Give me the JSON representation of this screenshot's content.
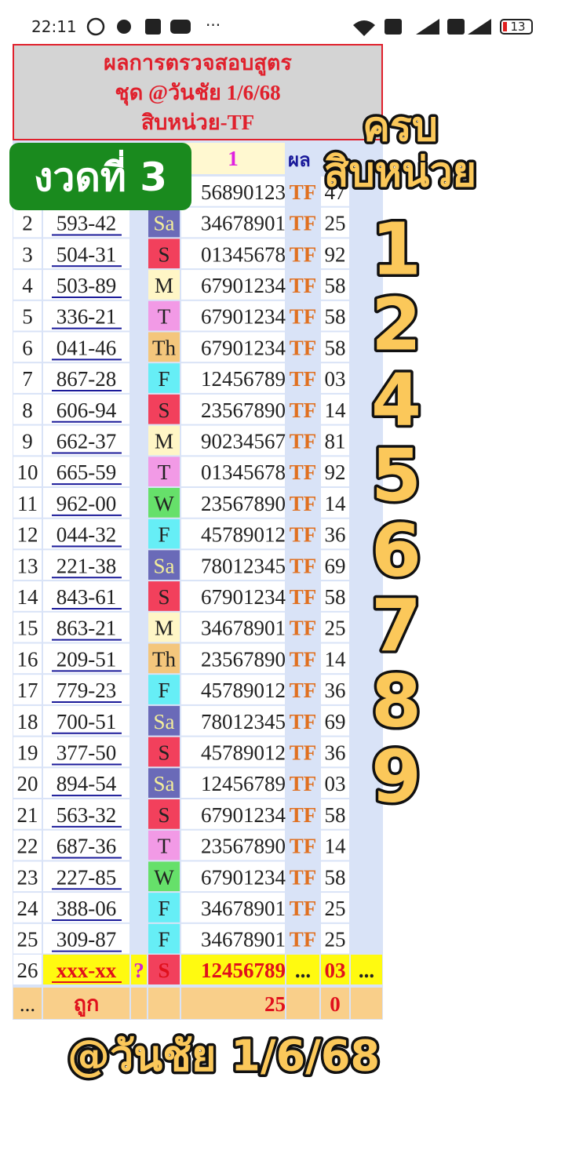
{
  "status_bar": {
    "time": "22:11",
    "more": "···",
    "battery": "13"
  },
  "header": {
    "lines": [
      "ผลการตรวจสอบสูตร",
      "ชุด @วันชัย 1/6/68",
      "สิบหน่วย-TF"
    ]
  },
  "column_headers": {
    "digits": "1",
    "result": "ผล"
  },
  "day_colors": {
    "Sa": "#6a6ab8",
    "S": "#f2405c",
    "M": "#fff6c6",
    "T": "#f29ae6",
    "Th": "#f4c67c",
    "F": "#66eef6",
    "W": "#66e06a"
  },
  "rows": [
    {
      "digits": "56890123",
      "tf": "TF",
      "result": "47"
    },
    {
      "no": "2",
      "code": "593-42",
      "day": "Sa",
      "digits": "34678901",
      "tf": "TF",
      "result": "25"
    },
    {
      "no": "3",
      "code": "504-31",
      "day": "S",
      "digits": "01345678",
      "tf": "TF",
      "result": "92"
    },
    {
      "no": "4",
      "code": "503-89",
      "day": "M",
      "digits": "67901234",
      "tf": "TF",
      "result": "58"
    },
    {
      "no": "5",
      "code": "336-21",
      "day": "T",
      "digits": "67901234",
      "tf": "TF",
      "result": "58"
    },
    {
      "no": "6",
      "code": "041-46",
      "day": "Th",
      "digits": "67901234",
      "tf": "TF",
      "result": "58"
    },
    {
      "no": "7",
      "code": "867-28",
      "day": "F",
      "digits": "12456789",
      "tf": "TF",
      "result": "03"
    },
    {
      "no": "8",
      "code": "606-94",
      "day": "S",
      "digits": "23567890",
      "tf": "TF",
      "result": "14"
    },
    {
      "no": "9",
      "code": "662-37",
      "day": "M",
      "digits": "90234567",
      "tf": "TF",
      "result": "81"
    },
    {
      "no": "10",
      "code": "665-59",
      "day": "T",
      "digits": "01345678",
      "tf": "TF",
      "result": "92"
    },
    {
      "no": "11",
      "code": "962-00",
      "day": "W",
      "digits": "23567890",
      "tf": "TF",
      "result": "14"
    },
    {
      "no": "12",
      "code": "044-32",
      "day": "F",
      "digits": "45789012",
      "tf": "TF",
      "result": "36"
    },
    {
      "no": "13",
      "code": "221-38",
      "day": "Sa",
      "digits": "78012345",
      "tf": "TF",
      "result": "69"
    },
    {
      "no": "14",
      "code": "843-61",
      "day": "S",
      "digits": "67901234",
      "tf": "TF",
      "result": "58"
    },
    {
      "no": "15",
      "code": "863-21",
      "day": "M",
      "digits": "34678901",
      "tf": "TF",
      "result": "25"
    },
    {
      "no": "16",
      "code": "209-51",
      "day": "Th",
      "digits": "23567890",
      "tf": "TF",
      "result": "14"
    },
    {
      "no": "17",
      "code": "779-23",
      "day": "F",
      "digits": "45789012",
      "tf": "TF",
      "result": "36"
    },
    {
      "no": "18",
      "code": "700-51",
      "day": "Sa",
      "digits": "78012345",
      "tf": "TF",
      "result": "69"
    },
    {
      "no": "19",
      "code": "377-50",
      "day": "S",
      "digits": "45789012",
      "tf": "TF",
      "result": "36"
    },
    {
      "no": "20",
      "code": "894-54",
      "day": "Sa",
      "digits": "12456789",
      "tf": "TF",
      "result": "03"
    },
    {
      "no": "21",
      "code": "563-32",
      "day": "S",
      "digits": "67901234",
      "tf": "TF",
      "result": "58"
    },
    {
      "no": "22",
      "code": "687-36",
      "day": "T",
      "digits": "23567890",
      "tf": "TF",
      "result": "14"
    },
    {
      "no": "23",
      "code": "227-85",
      "day": "W",
      "digits": "67901234",
      "tf": "TF",
      "result": "58"
    },
    {
      "no": "24",
      "code": "388-06",
      "day": "F",
      "digits": "34678901",
      "tf": "TF",
      "result": "25"
    },
    {
      "no": "25",
      "code": "309-87",
      "day": "F",
      "digits": "34678901",
      "tf": "TF",
      "result": "25"
    },
    {
      "no": "26",
      "code": "xxx-xx",
      "mark": "?",
      "day": "S",
      "digits": "12456789",
      "tf": "...",
      "result": "03",
      "extra": "..."
    }
  ],
  "footer_row": {
    "no": "...",
    "code": "ถูก",
    "digits": "25",
    "result": "0"
  },
  "overlay": {
    "title_lines": [
      "ครบ",
      "สิบหน่วย"
    ],
    "digits": [
      "1",
      "2",
      "4",
      "5",
      "6",
      "7",
      "8",
      "9"
    ],
    "badge": "งวดที่ 3",
    "footer": "@วันชัย 1/6/68"
  }
}
